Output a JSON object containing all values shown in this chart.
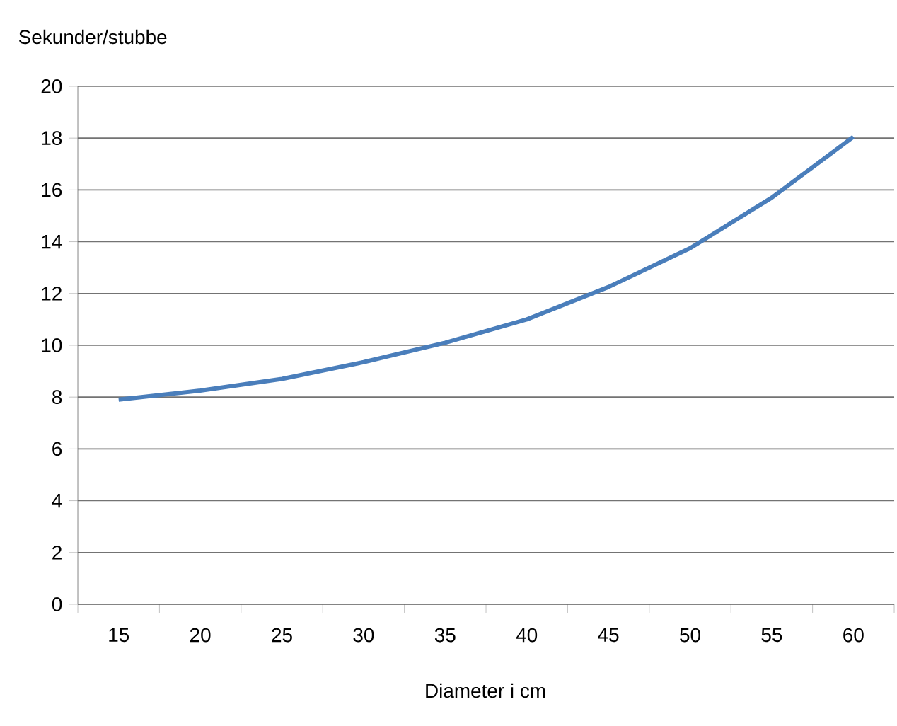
{
  "chart_data": {
    "type": "line",
    "ylabel": "Sekunder/stubbe",
    "xlabel": "Diameter i cm",
    "categories": [
      "15",
      "20",
      "25",
      "30",
      "35",
      "40",
      "45",
      "50",
      "55",
      "60"
    ],
    "values": [
      7.9,
      8.25,
      8.7,
      9.35,
      10.1,
      11.0,
      12.25,
      13.75,
      15.7,
      18.05
    ],
    "color": "#4a7ebb",
    "ylim": [
      0,
      20
    ],
    "yticks": [
      0,
      2,
      4,
      6,
      8,
      10,
      12,
      14,
      16,
      18,
      20
    ],
    "grid": "y",
    "marker": "none",
    "line_style": "solid"
  }
}
